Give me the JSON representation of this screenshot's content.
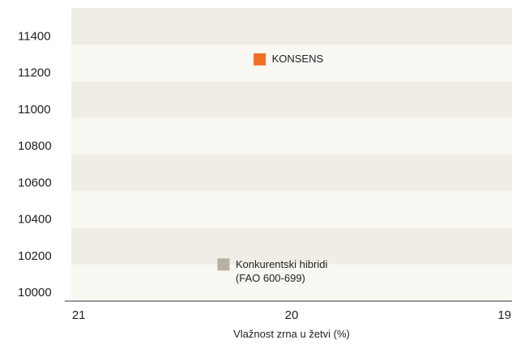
{
  "chart_data": {
    "type": "scatter",
    "x_label": "Vlažnost zrna u žetvi (%)",
    "series": [
      {
        "name": "KONSENS",
        "color": "#f07022",
        "x": [
          20.15
        ],
        "values": [
          11320
        ]
      },
      {
        "name": "Konkurentski hibridi (FAO 600-699)",
        "color": "#b8b1a2",
        "x": [
          20.32
        ],
        "values": [
          10200
        ]
      }
    ],
    "xlim": [
      21.035,
      18.965
    ],
    "xticks": [
      21,
      20,
      19
    ],
    "ylim": [
      10000,
      11600
    ],
    "yticks": [
      10000,
      10200,
      10400,
      10600,
      10800,
      11000,
      11200,
      11400
    ],
    "band_colors": [
      "#f8f7f2",
      "#f0ede6"
    ]
  }
}
